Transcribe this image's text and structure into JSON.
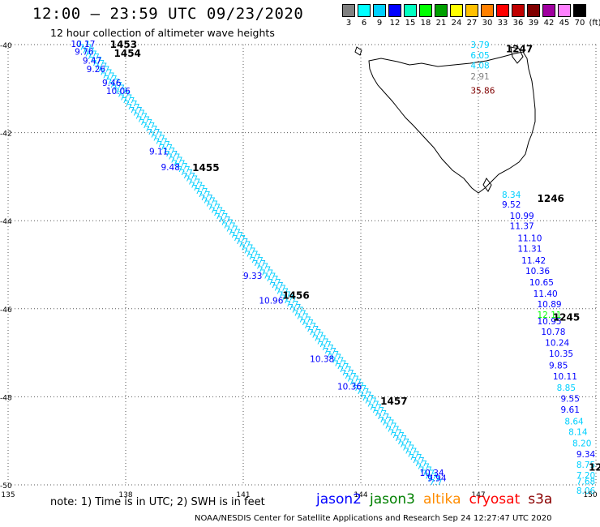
{
  "title": "12:00 – 23:59 UTC 09/23/2020",
  "subtitle": "12 hour collection of altimeter wave heights",
  "color_scale": {
    "unit": "(ft)",
    "colors": [
      "#808080",
      "#00ffff",
      "#00d0ff",
      "#0000ff",
      "#00ffc0",
      "#00ff00",
      "#00a000",
      "#ffff00",
      "#ffc000",
      "#ff8000",
      "#ff0000",
      "#c00000",
      "#800000",
      "#a000a0",
      "#ff80ff",
      "#000000"
    ],
    "labels": [
      "3",
      "6",
      "9",
      "12",
      "15",
      "18",
      "21",
      "24",
      "27",
      "30",
      "33",
      "36",
      "39",
      "42",
      "45",
      "70"
    ]
  },
  "map": {
    "lat_labels": [
      "-40",
      "-42",
      "-44",
      "-46",
      "-48",
      "-50"
    ],
    "lon_labels": [
      "135",
      "138",
      "141",
      "144",
      "147",
      "150"
    ],
    "region": "Tasmania"
  },
  "note": "note:  1) Time is in UTC;  2) SWH is in feet",
  "satellites": [
    {
      "name": "jason2",
      "color": "#0000ff"
    },
    {
      "name": "jason3",
      "color": "#008000"
    },
    {
      "name": "altika",
      "color": "#ff8c00"
    },
    {
      "name": "cryosat",
      "color": "#ff0000"
    },
    {
      "name": "s3a",
      "color": "#8b0000"
    }
  ],
  "credit": "NOAA/NESDIS Center for Satellite Applications and Research     Sep 24 12:27:47 UTC 2020",
  "chart_data": {
    "type": "scatter",
    "xlabel": "",
    "ylabel": "",
    "xlim": [
      135,
      150
    ],
    "ylim": [
      -50,
      -40
    ],
    "time_labels": [
      {
        "text": "1453",
        "lon": 137.6,
        "lat": -40.0,
        "color": "#008000"
      },
      {
        "text": "1454",
        "lon": 137.7,
        "lat": -40.2,
        "color": "#008000"
      },
      {
        "text": "1455",
        "lon": 139.7,
        "lat": -42.8,
        "color": "#008000"
      },
      {
        "text": "1456",
        "lon": 142.0,
        "lat": -45.7,
        "color": "#008000"
      },
      {
        "text": "1457",
        "lon": 144.5,
        "lat": -48.1,
        "color": "#008000"
      },
      {
        "text": "1247",
        "lon": 147.7,
        "lat": -40.1,
        "color": "#8b0000"
      },
      {
        "text": "1246",
        "lon": 148.5,
        "lat": -43.5,
        "color": "#8b0000"
      },
      {
        "text": "1245",
        "lon": 148.9,
        "lat": -46.2,
        "color": "#8b0000"
      },
      {
        "text": "12",
        "lon": 150.0,
        "lat": -49.6,
        "color": "#8b0000"
      }
    ],
    "track_a": [
      {
        "lon": 136.6,
        "lat": -39.98,
        "v": "10.17",
        "c": "#0000ff"
      },
      {
        "lon": 136.7,
        "lat": -40.16,
        "v": "9.76",
        "c": "#0000ff"
      },
      {
        "lon": 136.9,
        "lat": -40.36,
        "v": "9.47",
        "c": "#0000ff"
      },
      {
        "lon": 137.0,
        "lat": -40.55,
        "v": "9.26",
        "c": "#0000ff"
      },
      {
        "lon": 137.4,
        "lat": -40.87,
        "v": "9.46",
        "c": "#0000ff"
      },
      {
        "lon": 137.5,
        "lat": -41.05,
        "v": "10.06",
        "c": "#0000ff"
      },
      {
        "lon": 138.6,
        "lat": -42.42,
        "v": "9.11",
        "c": "#0000ff"
      },
      {
        "lon": 138.9,
        "lat": -42.78,
        "v": "9.48",
        "c": "#0000ff"
      },
      {
        "lon": 141.0,
        "lat": -45.25,
        "v": "9.33",
        "c": "#0000ff"
      },
      {
        "lon": 141.4,
        "lat": -45.81,
        "v": "10.96",
        "c": "#0000ff"
      },
      {
        "lon": 142.7,
        "lat": -47.14,
        "v": "10.38",
        "c": "#0000ff"
      },
      {
        "lon": 143.4,
        "lat": -47.76,
        "v": "10.36",
        "c": "#0000ff"
      },
      {
        "lon": 145.5,
        "lat": -49.72,
        "v": "10.34",
        "c": "#0000ff"
      },
      {
        "lon": 145.7,
        "lat": -49.84,
        "v": "9.94",
        "c": "#0000ff"
      }
    ],
    "track_b": [
      {
        "lon": 146.8,
        "lat": -40.0,
        "v": "3.79",
        "c": "#00d0ff"
      },
      {
        "lon": 146.8,
        "lat": -40.24,
        "v": "6.05",
        "c": "#00d0ff"
      },
      {
        "lon": 146.8,
        "lat": -40.47,
        "v": "4.08",
        "c": "#00d0ff"
      },
      {
        "lon": 146.8,
        "lat": -40.72,
        "v": "2.91",
        "c": "#808080"
      },
      {
        "lon": 146.8,
        "lat": -41.04,
        "v": "35.86",
        "c": "#800000"
      },
      {
        "lon": 147.6,
        "lat": -43.41,
        "v": "8.34",
        "c": "#00d0ff"
      },
      {
        "lon": 147.6,
        "lat": -43.63,
        "v": "9.52",
        "c": "#0000ff"
      },
      {
        "lon": 147.8,
        "lat": -43.89,
        "v": "10.99",
        "c": "#0000ff"
      },
      {
        "lon": 147.8,
        "lat": -44.12,
        "v": "11.37",
        "c": "#0000ff"
      },
      {
        "lon": 148.0,
        "lat": -44.39,
        "v": "11.10",
        "c": "#0000ff"
      },
      {
        "lon": 148.0,
        "lat": -44.63,
        "v": "11.31",
        "c": "#0000ff"
      },
      {
        "lon": 148.1,
        "lat": -44.9,
        "v": "11.42",
        "c": "#0000ff"
      },
      {
        "lon": 148.2,
        "lat": -45.14,
        "v": "10.36",
        "c": "#0000ff"
      },
      {
        "lon": 148.3,
        "lat": -45.4,
        "v": "10.65",
        "c": "#0000ff"
      },
      {
        "lon": 148.4,
        "lat": -45.65,
        "v": "11.40",
        "c": "#0000ff"
      },
      {
        "lon": 148.5,
        "lat": -45.89,
        "v": "10.89",
        "c": "#0000ff"
      },
      {
        "lon": 148.5,
        "lat": -46.13,
        "v": "12.11",
        "c": "#00ff00"
      },
      {
        "lon": 148.5,
        "lat": -46.28,
        "v": "10.95",
        "c": "#0000ff"
      },
      {
        "lon": 148.6,
        "lat": -46.52,
        "v": "10.78",
        "c": "#0000ff"
      },
      {
        "lon": 148.7,
        "lat": -46.77,
        "v": "10.24",
        "c": "#0000ff"
      },
      {
        "lon": 148.8,
        "lat": -47.02,
        "v": "10.35",
        "c": "#0000ff"
      },
      {
        "lon": 148.8,
        "lat": -47.28,
        "v": "9.85",
        "c": "#0000ff"
      },
      {
        "lon": 148.9,
        "lat": -47.53,
        "v": "10.11",
        "c": "#0000ff"
      },
      {
        "lon": 149.0,
        "lat": -47.79,
        "v": "8.85",
        "c": "#00d0ff"
      },
      {
        "lon": 149.1,
        "lat": -48.04,
        "v": "9.55",
        "c": "#0000ff"
      },
      {
        "lon": 149.1,
        "lat": -48.29,
        "v": "9.61",
        "c": "#0000ff"
      },
      {
        "lon": 149.2,
        "lat": -48.55,
        "v": "8.64",
        "c": "#00d0ff"
      },
      {
        "lon": 149.3,
        "lat": -48.79,
        "v": "8.14",
        "c": "#00d0ff"
      },
      {
        "lon": 149.4,
        "lat": -49.05,
        "v": "8.20",
        "c": "#00d0ff"
      },
      {
        "lon": 149.5,
        "lat": -49.3,
        "v": "9.34",
        "c": "#0000ff"
      },
      {
        "lon": 149.5,
        "lat": -49.54,
        "v": "8.75",
        "c": "#00d0ff"
      },
      {
        "lon": 149.5,
        "lat": -49.78,
        "v": "7.20",
        "c": "#00d0ff"
      },
      {
        "lon": 149.5,
        "lat": -49.92,
        "v": "7.68",
        "c": "#00d0ff"
      },
      {
        "lon": 149.5,
        "lat": -50.13,
        "v": "8.06",
        "c": "#00d0ff"
      }
    ]
  }
}
